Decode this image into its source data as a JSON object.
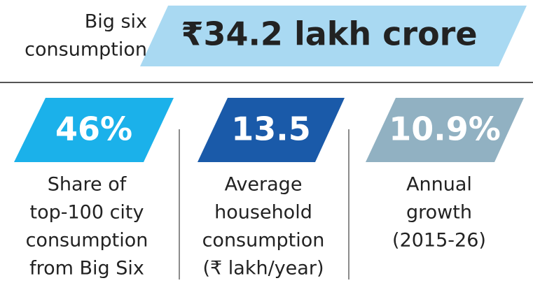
{
  "header": {
    "label_lines": [
      "Big six",
      "consumption"
    ],
    "value": "₹34.2 lakh crore"
  },
  "stats": [
    {
      "value": "46%",
      "label_lines": [
        "Share of",
        "top-100 city",
        "consumption",
        "from Big Six"
      ]
    },
    {
      "value": "13.5",
      "label_lines": [
        "Average",
        "household",
        "consumption",
        "(₹ lakh/year)"
      ]
    },
    {
      "value": "10.9%",
      "label_lines": [
        "Annual",
        "growth",
        "(2015-26)"
      ]
    }
  ]
}
